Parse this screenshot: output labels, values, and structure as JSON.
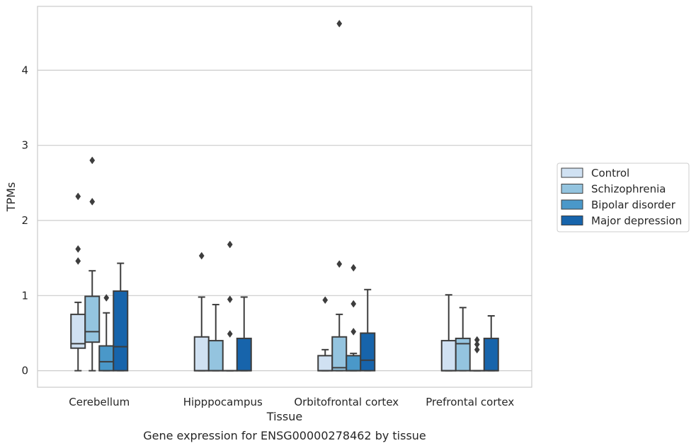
{
  "chart_data": {
    "type": "boxplot",
    "title": "Gene expression for ENSG00000278462 by tissue",
    "xlabel": "Tissue",
    "ylabel": "TPMs",
    "ylim": [
      -0.22,
      4.85
    ],
    "yticks": [
      0,
      1,
      2,
      3,
      4
    ],
    "grid": "horizontal",
    "legend_position": "right",
    "categories": [
      "Cerebellum",
      "Hipppocampus",
      "Orbitofrontal cortex",
      "Prefrontal cortex"
    ],
    "series": [
      {
        "name": "Control",
        "color": "#d0e1f2",
        "boxes": [
          {
            "q1": 0.3,
            "median": 0.36,
            "q3": 0.75,
            "whisker_low": 0.0,
            "whisker_high": 0.91,
            "outliers": [
              1.46,
              1.62,
              2.32
            ]
          },
          {
            "q1": 0.0,
            "median": 0.0,
            "q3": 0.45,
            "whisker_low": 0.0,
            "whisker_high": 0.98,
            "outliers": [
              1.53
            ]
          },
          {
            "q1": 0.0,
            "median": 0.0,
            "q3": 0.2,
            "whisker_low": 0.0,
            "whisker_high": 0.28,
            "outliers": [
              0.94
            ]
          },
          {
            "q1": 0.0,
            "median": 0.0,
            "q3": 0.4,
            "whisker_low": 0.0,
            "whisker_high": 1.01,
            "outliers": []
          }
        ]
      },
      {
        "name": "Schizophrenia",
        "color": "#94c4df",
        "boxes": [
          {
            "q1": 0.38,
            "median": 0.52,
            "q3": 0.99,
            "whisker_low": 0.0,
            "whisker_high": 1.33,
            "outliers": [
              2.25,
              2.8
            ]
          },
          {
            "q1": 0.0,
            "median": 0.0,
            "q3": 0.4,
            "whisker_low": 0.0,
            "whisker_high": 0.88,
            "outliers": []
          },
          {
            "q1": 0.0,
            "median": 0.04,
            "q3": 0.45,
            "whisker_low": 0.0,
            "whisker_high": 0.75,
            "outliers": [
              1.42,
              4.62
            ]
          },
          {
            "q1": 0.0,
            "median": 0.36,
            "q3": 0.43,
            "whisker_low": 0.0,
            "whisker_high": 0.84,
            "outliers": []
          }
        ]
      },
      {
        "name": "Bipolar disorder",
        "color": "#4a98c9",
        "boxes": [
          {
            "q1": 0.0,
            "median": 0.12,
            "q3": 0.33,
            "whisker_low": 0.0,
            "whisker_high": 0.77,
            "outliers": [
              0.97
            ]
          },
          {
            "q1": 0.0,
            "median": 0.0,
            "q3": 0.0,
            "whisker_low": 0.0,
            "whisker_high": 0.0,
            "outliers": [
              0.49,
              0.95,
              1.68
            ]
          },
          {
            "q1": 0.0,
            "median": 0.0,
            "q3": 0.2,
            "whisker_low": 0.0,
            "whisker_high": 0.23,
            "outliers": [
              0.52,
              0.89,
              1.37
            ]
          },
          {
            "q1": 0.0,
            "median": 0.0,
            "q3": 0.0,
            "whisker_low": 0.0,
            "whisker_high": 0.0,
            "outliers": [
              0.28,
              0.35,
              0.41
            ]
          }
        ]
      },
      {
        "name": "Major depression",
        "color": "#1764ab",
        "boxes": [
          {
            "q1": 0.0,
            "median": 0.32,
            "q3": 1.06,
            "whisker_low": 0.0,
            "whisker_high": 1.43,
            "outliers": []
          },
          {
            "q1": 0.0,
            "median": 0.0,
            "q3": 0.43,
            "whisker_low": 0.0,
            "whisker_high": 0.98,
            "outliers": []
          },
          {
            "q1": 0.0,
            "median": 0.14,
            "q3": 0.5,
            "whisker_low": 0.0,
            "whisker_high": 1.08,
            "outliers": []
          },
          {
            "q1": 0.0,
            "median": 0.0,
            "q3": 0.43,
            "whisker_low": 0.0,
            "whisker_high": 0.73,
            "outliers": []
          }
        ]
      }
    ]
  }
}
